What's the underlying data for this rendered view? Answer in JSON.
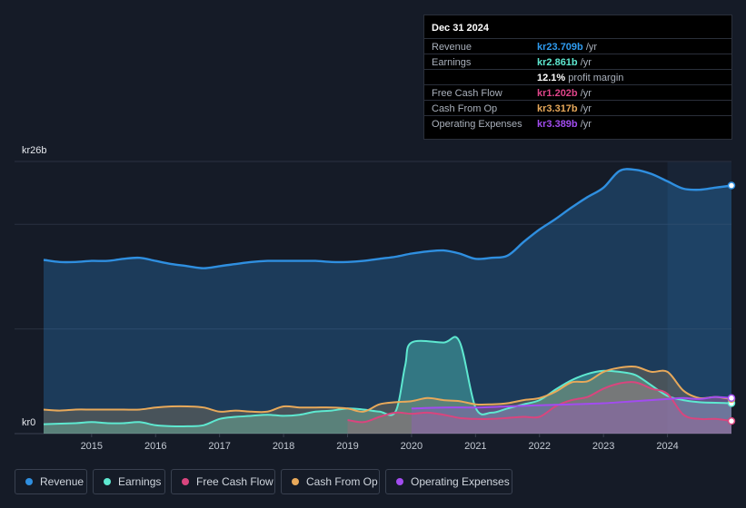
{
  "colors": {
    "revenue": "#2f8fe0",
    "earnings": "#5ee8d0",
    "fcf": "#d9457e",
    "cfo": "#e8a95a",
    "opex": "#a24cf0",
    "background": "#151b27"
  },
  "tooltip": {
    "date": "Dec 31 2024",
    "rows": [
      {
        "label": "Revenue",
        "value": "kr23.709b",
        "unit": "/yr",
        "color": "#2f9cf0"
      },
      {
        "label": "Earnings",
        "value": "kr2.861b",
        "unit": "/yr",
        "color": "#5ee8d0"
      },
      {
        "label": "",
        "value": "12.1%",
        "unit": "profit margin",
        "color": "#ffffff"
      },
      {
        "label": "Free Cash Flow",
        "value": "kr1.202b",
        "unit": "/yr",
        "color": "#e0458a"
      },
      {
        "label": "Cash From Op",
        "value": "kr3.317b",
        "unit": "/yr",
        "color": "#e8a95a"
      },
      {
        "label": "Operating Expenses",
        "value": "kr3.389b",
        "unit": "/yr",
        "color": "#a24cf0"
      }
    ]
  },
  "legend": [
    {
      "label": "Revenue",
      "key": "revenue"
    },
    {
      "label": "Earnings",
      "key": "earnings"
    },
    {
      "label": "Free Cash Flow",
      "key": "fcf"
    },
    {
      "label": "Cash From Op",
      "key": "cfo"
    },
    {
      "label": "Operating Expenses",
      "key": "opex"
    }
  ],
  "chart_data": {
    "type": "area",
    "title": "",
    "ylabel": "",
    "y_top_label": "kr26b",
    "y_bottom_label": "kr0",
    "ylim": [
      0,
      26
    ],
    "xlim": [
      2014.25,
      2025.0
    ],
    "x_ticks": [
      "2015",
      "2016",
      "2017",
      "2018",
      "2019",
      "2020",
      "2021",
      "2022",
      "2023",
      "2024"
    ],
    "x_tick_values": [
      2015,
      2016,
      2017,
      2018,
      2019,
      2020,
      2021,
      2022,
      2023,
      2024
    ],
    "forecast_start": 2024.0,
    "series": [
      {
        "name": "Revenue",
        "key": "revenue",
        "points": [
          [
            2014.25,
            16.6
          ],
          [
            2014.5,
            16.4
          ],
          [
            2014.75,
            16.4
          ],
          [
            2015.0,
            16.5
          ],
          [
            2015.25,
            16.5
          ],
          [
            2015.5,
            16.7
          ],
          [
            2015.75,
            16.8
          ],
          [
            2016.0,
            16.5
          ],
          [
            2016.25,
            16.2
          ],
          [
            2016.5,
            16.0
          ],
          [
            2016.75,
            15.8
          ],
          [
            2017.0,
            16.0
          ],
          [
            2017.25,
            16.2
          ],
          [
            2017.5,
            16.4
          ],
          [
            2017.75,
            16.5
          ],
          [
            2018.0,
            16.5
          ],
          [
            2018.25,
            16.5
          ],
          [
            2018.5,
            16.5
          ],
          [
            2018.75,
            16.4
          ],
          [
            2019.0,
            16.4
          ],
          [
            2019.25,
            16.5
          ],
          [
            2019.5,
            16.7
          ],
          [
            2019.75,
            16.9
          ],
          [
            2020.0,
            17.2
          ],
          [
            2020.25,
            17.4
          ],
          [
            2020.5,
            17.5
          ],
          [
            2020.75,
            17.2
          ],
          [
            2021.0,
            16.7
          ],
          [
            2021.25,
            16.8
          ],
          [
            2021.5,
            17.0
          ],
          [
            2021.75,
            18.3
          ],
          [
            2022.0,
            19.5
          ],
          [
            2022.25,
            20.5
          ],
          [
            2022.5,
            21.6
          ],
          [
            2022.75,
            22.6
          ],
          [
            2023.0,
            23.5
          ],
          [
            2023.25,
            25.1
          ],
          [
            2023.5,
            25.2
          ],
          [
            2023.75,
            24.8
          ],
          [
            2024.0,
            24.1
          ],
          [
            2024.25,
            23.4
          ],
          [
            2024.5,
            23.3
          ],
          [
            2024.75,
            23.5
          ],
          [
            2025.0,
            23.7
          ]
        ]
      },
      {
        "name": "Earnings",
        "key": "earnings",
        "points": [
          [
            2014.25,
            0.9
          ],
          [
            2014.75,
            1.0
          ],
          [
            2015.0,
            1.1
          ],
          [
            2015.25,
            1.0
          ],
          [
            2015.5,
            1.0
          ],
          [
            2015.75,
            1.1
          ],
          [
            2016.0,
            0.8
          ],
          [
            2016.25,
            0.7
          ],
          [
            2016.5,
            0.7
          ],
          [
            2016.75,
            0.8
          ],
          [
            2017.0,
            1.4
          ],
          [
            2017.25,
            1.6
          ],
          [
            2017.5,
            1.7
          ],
          [
            2017.75,
            1.8
          ],
          [
            2018.0,
            1.7
          ],
          [
            2018.25,
            1.8
          ],
          [
            2018.5,
            2.1
          ],
          [
            2018.75,
            2.2
          ],
          [
            2019.0,
            2.4
          ],
          [
            2019.25,
            2.3
          ],
          [
            2019.5,
            2.1
          ],
          [
            2019.75,
            2.1
          ],
          [
            2019.9,
            6.5
          ],
          [
            2020.0,
            8.7
          ],
          [
            2020.5,
            8.7
          ],
          [
            2020.75,
            8.8
          ],
          [
            2021.0,
            2.5
          ],
          [
            2021.25,
            2.0
          ],
          [
            2021.5,
            2.4
          ],
          [
            2021.75,
            2.8
          ],
          [
            2022.0,
            3.2
          ],
          [
            2022.25,
            4.2
          ],
          [
            2022.5,
            5.1
          ],
          [
            2022.75,
            5.7
          ],
          [
            2023.0,
            6.0
          ],
          [
            2023.25,
            5.9
          ],
          [
            2023.5,
            5.6
          ],
          [
            2023.75,
            4.6
          ],
          [
            2024.0,
            3.6
          ],
          [
            2024.25,
            3.2
          ],
          [
            2024.5,
            3.0
          ],
          [
            2025.0,
            2.9
          ]
        ]
      },
      {
        "name": "Free Cash Flow",
        "key": "fcf",
        "points": [
          [
            2019.0,
            1.3
          ],
          [
            2019.25,
            1.1
          ],
          [
            2019.5,
            1.6
          ],
          [
            2019.75,
            2.0
          ],
          [
            2020.0,
            1.9
          ],
          [
            2020.25,
            2.0
          ],
          [
            2020.5,
            1.8
          ],
          [
            2020.75,
            1.5
          ],
          [
            2021.0,
            1.4
          ],
          [
            2021.25,
            1.4
          ],
          [
            2021.5,
            1.5
          ],
          [
            2021.75,
            1.6
          ],
          [
            2022.0,
            1.6
          ],
          [
            2022.25,
            2.6
          ],
          [
            2022.5,
            3.2
          ],
          [
            2022.75,
            3.5
          ],
          [
            2023.0,
            4.3
          ],
          [
            2023.25,
            4.8
          ],
          [
            2023.5,
            4.9
          ],
          [
            2023.75,
            4.3
          ],
          [
            2024.0,
            3.8
          ],
          [
            2024.25,
            1.8
          ],
          [
            2024.5,
            1.4
          ],
          [
            2024.75,
            1.4
          ],
          [
            2025.0,
            1.2
          ]
        ]
      },
      {
        "name": "Cash From Op",
        "key": "cfo",
        "points": [
          [
            2014.25,
            2.3
          ],
          [
            2014.5,
            2.2
          ],
          [
            2014.75,
            2.3
          ],
          [
            2015.0,
            2.3
          ],
          [
            2015.25,
            2.3
          ],
          [
            2015.5,
            2.3
          ],
          [
            2015.75,
            2.3
          ],
          [
            2016.0,
            2.5
          ],
          [
            2016.25,
            2.6
          ],
          [
            2016.5,
            2.6
          ],
          [
            2016.75,
            2.5
          ],
          [
            2017.0,
            2.1
          ],
          [
            2017.25,
            2.2
          ],
          [
            2017.5,
            2.1
          ],
          [
            2017.75,
            2.1
          ],
          [
            2018.0,
            2.6
          ],
          [
            2018.25,
            2.5
          ],
          [
            2018.5,
            2.5
          ],
          [
            2018.75,
            2.5
          ],
          [
            2019.0,
            2.4
          ],
          [
            2019.25,
            2.1
          ],
          [
            2019.5,
            2.8
          ],
          [
            2019.75,
            3.0
          ],
          [
            2020.0,
            3.1
          ],
          [
            2020.25,
            3.4
          ],
          [
            2020.5,
            3.2
          ],
          [
            2020.75,
            3.1
          ],
          [
            2021.0,
            2.8
          ],
          [
            2021.25,
            2.8
          ],
          [
            2021.5,
            2.9
          ],
          [
            2021.75,
            3.2
          ],
          [
            2022.0,
            3.4
          ],
          [
            2022.25,
            4.0
          ],
          [
            2022.5,
            4.9
          ],
          [
            2022.75,
            5.0
          ],
          [
            2023.0,
            5.9
          ],
          [
            2023.25,
            6.3
          ],
          [
            2023.5,
            6.4
          ],
          [
            2023.75,
            5.9
          ],
          [
            2024.0,
            5.9
          ],
          [
            2024.25,
            4.1
          ],
          [
            2024.5,
            3.4
          ],
          [
            2024.75,
            3.5
          ],
          [
            2025.0,
            3.3
          ]
        ]
      },
      {
        "name": "Operating Expenses",
        "key": "opex",
        "points": [
          [
            2020.0,
            2.4
          ],
          [
            2020.5,
            2.5
          ],
          [
            2021.0,
            2.5
          ],
          [
            2021.5,
            2.6
          ],
          [
            2022.0,
            2.7
          ],
          [
            2022.5,
            2.8
          ],
          [
            2023.0,
            2.9
          ],
          [
            2023.5,
            3.1
          ],
          [
            2024.0,
            3.3
          ],
          [
            2024.25,
            3.4
          ],
          [
            2024.5,
            3.3
          ],
          [
            2024.75,
            3.5
          ],
          [
            2025.0,
            3.4
          ]
        ]
      }
    ]
  }
}
